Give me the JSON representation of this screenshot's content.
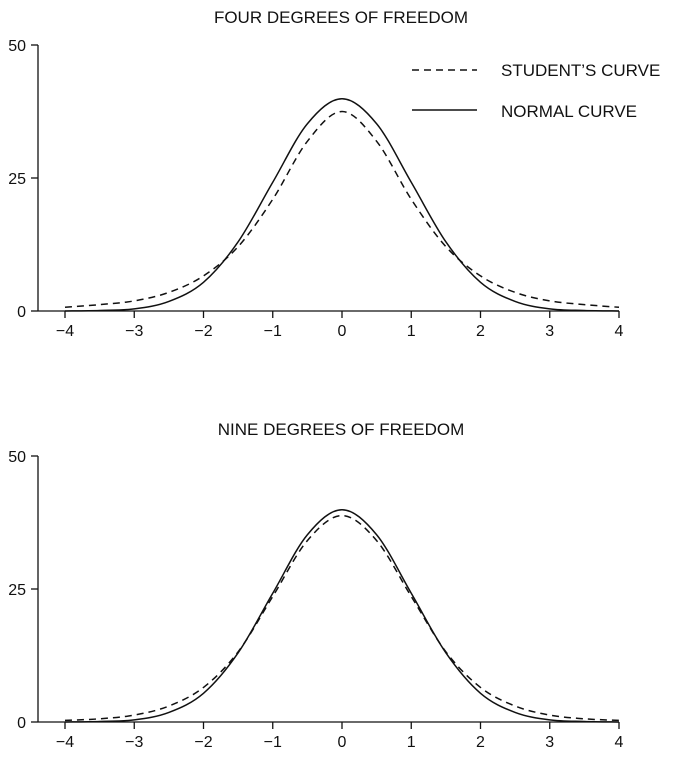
{
  "chart_data": [
    {
      "type": "line",
      "title": "FOUR DEGREES OF FREEDOM",
      "xlabel": "",
      "ylabel": "",
      "xlim": [
        -4,
        4
      ],
      "ylim": [
        0,
        50
      ],
      "x_ticks": [
        -4,
        -3,
        -2,
        -1,
        0,
        1,
        2,
        3,
        4
      ],
      "x_tick_labels": [
        "−4",
        "−3",
        "−2",
        "−1",
        "0",
        "1",
        "2",
        "3",
        "4"
      ],
      "y_ticks": [
        0,
        25,
        50
      ],
      "y_tick_labels": [
        "0",
        "25",
        "50"
      ],
      "grid": false,
      "legend": {
        "placement": "top-right",
        "entries": [
          {
            "label": "STUDENT’S CURVE",
            "style": "dashed"
          },
          {
            "label": "NORMAL CURVE",
            "style": "solid"
          }
        ]
      },
      "x": [
        -4,
        -3.5,
        -3,
        -2.5,
        -2,
        -1.5,
        -1,
        -0.5,
        0,
        0.5,
        1,
        1.5,
        2,
        2.5,
        3,
        3.5,
        4
      ],
      "series": [
        {
          "name": "STUDENT’S CURVE",
          "style": "dashed",
          "values": [
            0.7,
            1.2,
            1.9,
            3.5,
            6.6,
            12.1,
            21.0,
            31.9,
            37.5,
            31.9,
            21.0,
            12.1,
            6.6,
            3.5,
            1.9,
            1.2,
            0.7
          ]
        },
        {
          "name": "NORMAL CURVE",
          "style": "solid",
          "values": [
            0.0,
            0.1,
            0.4,
            1.8,
            5.4,
            13.0,
            24.2,
            35.2,
            39.9,
            35.2,
            24.2,
            13.0,
            5.4,
            1.8,
            0.4,
            0.1,
            0.0
          ]
        }
      ]
    },
    {
      "type": "line",
      "title": "NINE DEGREES OF FREEDOM",
      "xlabel": "",
      "ylabel": "",
      "xlim": [
        -4,
        4
      ],
      "ylim": [
        0,
        50
      ],
      "x_ticks": [
        -4,
        -3,
        -2,
        -1,
        0,
        1,
        2,
        3,
        4
      ],
      "x_tick_labels": [
        "−4",
        "−3",
        "−2",
        "−1",
        "0",
        "1",
        "2",
        "3",
        "4"
      ],
      "y_ticks": [
        0,
        25,
        50
      ],
      "y_tick_labels": [
        "0",
        "25",
        "50"
      ],
      "grid": false,
      "x": [
        -4,
        -3.5,
        -3,
        -2.5,
        -2,
        -1.5,
        -1,
        -0.5,
        0,
        0.5,
        1,
        1.5,
        2,
        2.5,
        3,
        3.5,
        4
      ],
      "series": [
        {
          "style": "dashed",
          "values": [
            0.3,
            0.6,
            1.3,
            3.0,
            6.5,
            13.2,
            23.6,
            34.1,
            38.8,
            34.1,
            23.6,
            13.2,
            6.5,
            3.0,
            1.3,
            0.6,
            0.3
          ]
        },
        {
          "style": "solid",
          "values": [
            0.0,
            0.1,
            0.4,
            1.8,
            5.4,
            13.0,
            24.2,
            35.2,
            39.9,
            35.2,
            24.2,
            13.0,
            5.4,
            1.8,
            0.4,
            0.1,
            0.0
          ]
        }
      ]
    }
  ]
}
